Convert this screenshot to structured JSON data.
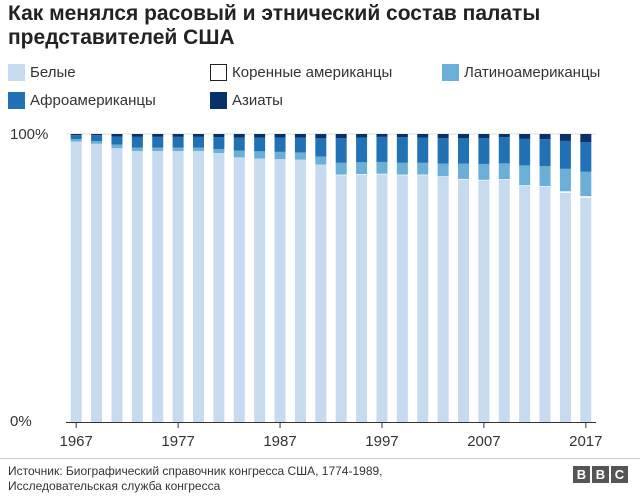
{
  "chart_data": {
    "type": "bar",
    "stacked": true,
    "title": "Как менялся расовый и этнический состав палаты представителей США",
    "categories": [
      "1967",
      "1969",
      "1971",
      "1973",
      "1975",
      "1977",
      "1979",
      "1981",
      "1983",
      "1985",
      "1987",
      "1989",
      "1991",
      "1993",
      "1995",
      "1997",
      "1999",
      "2001",
      "2003",
      "2005",
      "2007",
      "2009",
      "2011",
      "2013",
      "2015",
      "2017"
    ],
    "x_tick_labels": [
      "1967",
      "1977",
      "1987",
      "1997",
      "2007",
      "2017"
    ],
    "y_tick_labels": [
      "100%",
      "0%"
    ],
    "ylim": [
      0,
      100
    ],
    "series": [
      {
        "name": "Белые",
        "color": "#c6dbef",
        "values": [
          97.4,
          96.6,
          95.1,
          94.1,
          94.1,
          94.1,
          94.1,
          93.4,
          91.9,
          91.5,
          91.3,
          91.1,
          89.4,
          85.7,
          85.9,
          86.0,
          85.7,
          85.7,
          85.1,
          84.2,
          83.9,
          84.1,
          82.0,
          81.7,
          79.6,
          77.9
        ]
      },
      {
        "name": "Коренные американцы",
        "color": "#ffffff",
        "values": [
          0,
          0,
          0,
          0,
          0,
          0,
          0,
          0,
          0,
          0,
          0,
          0,
          0,
          0.2,
          0.2,
          0.2,
          0.2,
          0.2,
          0.2,
          0.2,
          0.2,
          0.2,
          0.2,
          0.2,
          0.5,
          0.5
        ]
      },
      {
        "name": "Латиноамериканцы",
        "color": "#6baed6",
        "values": [
          0.8,
          0.9,
          1.2,
          1.2,
          1.2,
          1.2,
          1.2,
          1.4,
          2.3,
          2.5,
          2.5,
          2.5,
          2.8,
          4.1,
          4.1,
          4.1,
          4.1,
          4.1,
          4.4,
          5.3,
          5.5,
          5.5,
          6.9,
          6.9,
          7.8,
          8.5
        ]
      },
      {
        "name": "Афроамериканцы",
        "color": "#2171b5",
        "values": [
          1.4,
          2.1,
          2.8,
          3.7,
          3.7,
          3.7,
          3.7,
          4.1,
          4.6,
          4.8,
          5.0,
          5.2,
          6.4,
          8.6,
          8.6,
          8.7,
          8.9,
          8.8,
          8.9,
          8.9,
          9.0,
          9.1,
          9.2,
          9.4,
          9.7,
          10.3
        ]
      },
      {
        "name": "Азиаты",
        "color": "#08306b",
        "values": [
          0.4,
          0.4,
          0.9,
          1.0,
          1.0,
          1.0,
          1.0,
          1.1,
          1.2,
          1.2,
          1.2,
          1.2,
          1.4,
          1.4,
          1.2,
          1.0,
          1.1,
          1.2,
          1.4,
          1.4,
          1.4,
          1.1,
          1.7,
          1.8,
          2.4,
          2.8
        ]
      }
    ]
  },
  "source": {
    "line1": "Источник: Биографический справочник конгресса США, 1774-1989,",
    "line2": "Исследовательская служба конгресса"
  },
  "logo": {
    "letters": [
      "B",
      "B",
      "C"
    ]
  }
}
